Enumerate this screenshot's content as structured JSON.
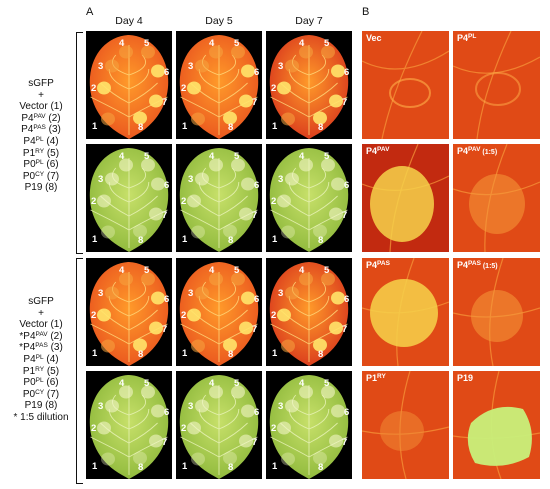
{
  "panels": {
    "a": "A",
    "b": "B"
  },
  "days": [
    "Day 4",
    "Day 5",
    "Day 7"
  ],
  "legend_top": {
    "lines": [
      {
        "t": "sGFP"
      },
      {
        "t": "+"
      },
      {
        "t": "Vector (1)"
      },
      {
        "t": "P4",
        "sup": "PAV",
        "tail": " (2)"
      },
      {
        "t": "P4",
        "sup": "PAS",
        "tail": " (3)"
      },
      {
        "t": "P4",
        "sup": "PL",
        "tail": " (4)"
      },
      {
        "t": "P1",
        "sup": "RY",
        "tail": " (5)"
      },
      {
        "t": "P0",
        "sup": "PL",
        "tail": " (6)"
      },
      {
        "t": "P0",
        "sup": "CY",
        "tail": " (7)"
      },
      {
        "t": "P19 (8)"
      }
    ]
  },
  "legend_bottom": {
    "lines": [
      {
        "t": "sGFP"
      },
      {
        "t": "+"
      },
      {
        "t": "Vector (1)"
      },
      {
        "t": "*P4",
        "sup": "PAV",
        "tail": " (2)"
      },
      {
        "t": "*P4",
        "sup": "PAS",
        "tail": " (3)"
      },
      {
        "t": "P4",
        "sup": "PL",
        "tail": " (4)"
      },
      {
        "t": "P1",
        "sup": "RY",
        "tail": " (5)"
      },
      {
        "t": "P0",
        "sup": "PL",
        "tail": " (6)"
      },
      {
        "t": "P0",
        "sup": "CY",
        "tail": " (7)"
      },
      {
        "t": "P19 (8)"
      },
      {
        "t": "* 1:5 dilution"
      }
    ]
  },
  "spot_numbers": [
    "1",
    "2",
    "3",
    "4",
    "5",
    "6",
    "7",
    "8"
  ],
  "b_labels": [
    {
      "t": "Vec"
    },
    {
      "t": "P4",
      "sup": "PL"
    },
    {
      "t": "P4",
      "sup": "PAV"
    },
    {
      "t": "P4",
      "sup": "PAV",
      "tail": " (1:5)"
    },
    {
      "t": "P4",
      "sup": "PAS"
    },
    {
      "t": "P4",
      "sup": "PAS",
      "tail": " (1:5)"
    },
    {
      "t": "P1",
      "sup": "RY"
    },
    {
      "t": "P19"
    }
  ]
}
